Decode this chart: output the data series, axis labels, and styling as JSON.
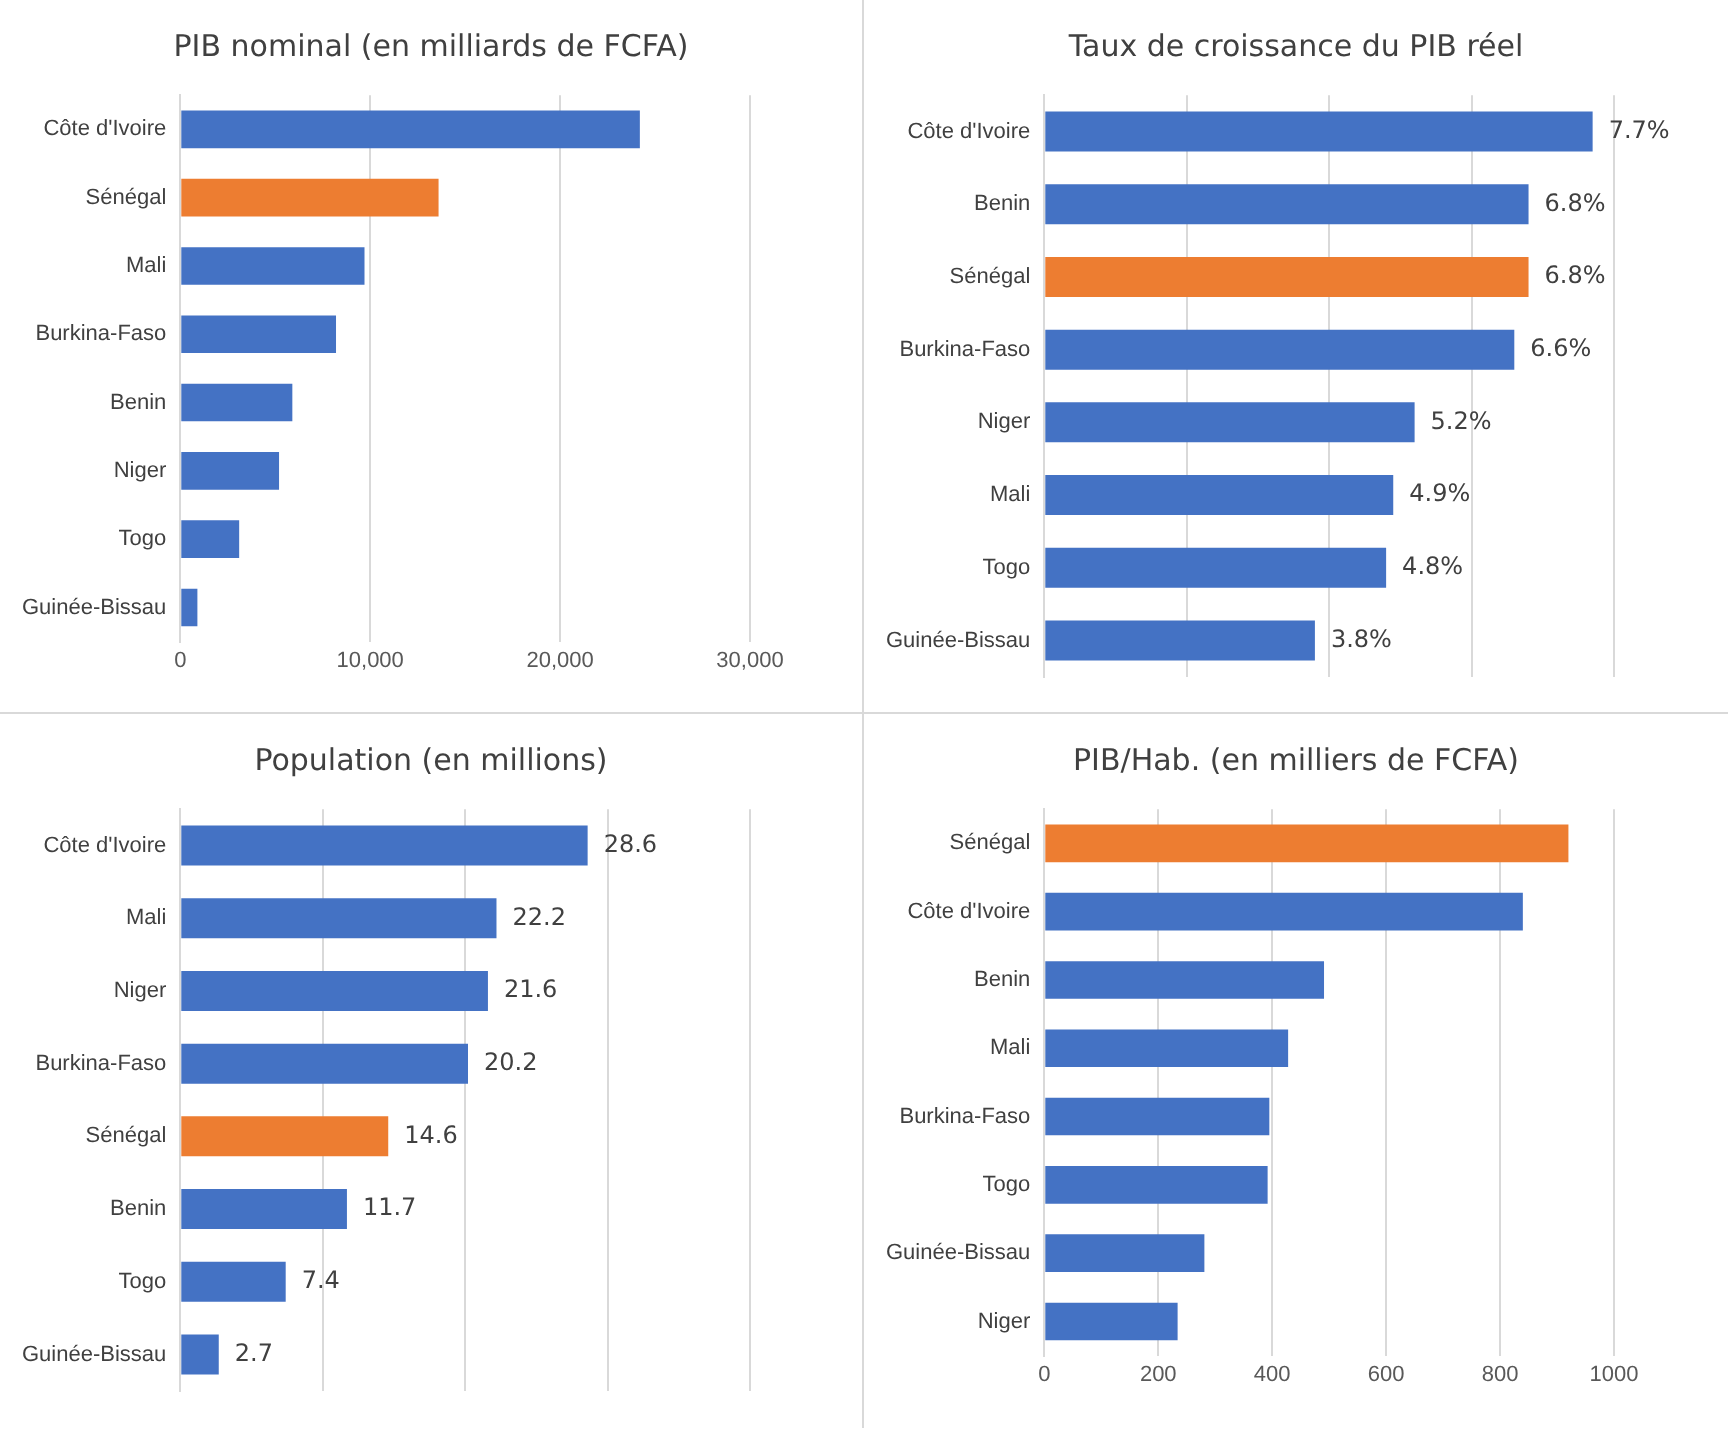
{
  "chart_data": [
    {
      "type": "bar",
      "orientation": "horizontal",
      "title": "PIB nominal (en milliards de FCFA)",
      "categories": [
        "Côte d'Ivoire",
        "Sénégal",
        "Mali",
        "Burkina-Faso",
        "Benin",
        "Niger",
        "Togo",
        "Guinée-Bissau"
      ],
      "values": [
        24200,
        13600,
        9700,
        8200,
        5900,
        5200,
        3100,
        900
      ],
      "colors": [
        "#4472c4",
        "#ed7d31",
        "#4472c4",
        "#4472c4",
        "#4472c4",
        "#4472c4",
        "#4472c4",
        "#4472c4"
      ],
      "xlim": [
        0,
        30000
      ],
      "xticks": [
        {
          "value": 0,
          "label": "0"
        },
        {
          "value": 10000,
          "label": "10,000"
        },
        {
          "value": 20000,
          "label": "20,000"
        },
        {
          "value": 30000,
          "label": "30,000"
        }
      ],
      "grid": "x",
      "legend": false
    },
    {
      "type": "bar",
      "orientation": "horizontal",
      "title": "Taux de croissance du PIB réel",
      "categories": [
        "Côte d'Ivoire",
        "Benin",
        "Sénégal",
        "Burkina-Faso",
        "Niger",
        "Mali",
        "Togo",
        "Guinée-Bissau"
      ],
      "values": [
        7.7,
        6.8,
        6.8,
        6.6,
        5.2,
        4.9,
        4.8,
        3.8
      ],
      "value_labels": [
        "7.7%",
        "6.8%",
        "6.8%",
        "6.6%",
        "5.2%",
        "4.9%",
        "4.8%",
        "3.8%"
      ],
      "colors": [
        "#4472c4",
        "#4472c4",
        "#ed7d31",
        "#4472c4",
        "#4472c4",
        "#4472c4",
        "#4472c4",
        "#4472c4"
      ],
      "xlim": [
        0,
        8
      ],
      "xticks": [
        {
          "value": 0,
          "label": null
        },
        {
          "value": 2,
          "label": null
        },
        {
          "value": 4,
          "label": null
        },
        {
          "value": 6,
          "label": null
        },
        {
          "value": 8,
          "label": null
        }
      ],
      "tick_labels": "y",
      "grid": "x",
      "legend": false
    },
    {
      "type": "bar",
      "orientation": "horizontal",
      "title": "Population (en millions)",
      "categories": [
        "Côte d'Ivoire",
        "Mali",
        "Niger",
        "Burkina-Faso",
        "Sénégal",
        "Benin",
        "Togo",
        "Guinée-Bissau"
      ],
      "values": [
        28.6,
        22.2,
        21.6,
        20.2,
        14.6,
        11.7,
        7.4,
        2.7
      ],
      "data_labels": true,
      "colors": [
        "#4472c4",
        "#4472c4",
        "#4472c4",
        "#4472c4",
        "#ed7d31",
        "#4472c4",
        "#4472c4",
        "#4472c4"
      ],
      "xlim": [
        0,
        40
      ],
      "xticks": [
        {
          "value": 0,
          "label": null
        },
        {
          "value": 10,
          "label": null
        },
        {
          "value": 20,
          "label": null
        },
        {
          "value": 30,
          "label": null
        },
        {
          "value": 40,
          "label": null
        }
      ],
      "tick_labels": "y",
      "grid": "x",
      "legend": false
    },
    {
      "type": "bar",
      "orientation": "horizontal",
      "title": "PIB/Hab. (en milliers de FCFA)",
      "categories": [
        "Sénégal",
        "Côte d'Ivoire",
        "Benin",
        "Mali",
        "Burkina-Faso",
        "Togo",
        "Guinée-Bissau",
        "Niger"
      ],
      "values": [
        920,
        840,
        491,
        428,
        395,
        392,
        281,
        234
      ],
      "colors": [
        "#ed7d31",
        "#4472c4",
        "#4472c4",
        "#4472c4",
        "#4472c4",
        "#4472c4",
        "#4472c4",
        "#4472c4"
      ],
      "xlim": [
        0,
        1000
      ],
      "xticks": [
        0,
        200,
        400,
        600,
        800,
        1000
      ],
      "grid": "x",
      "legend": false
    }
  ]
}
